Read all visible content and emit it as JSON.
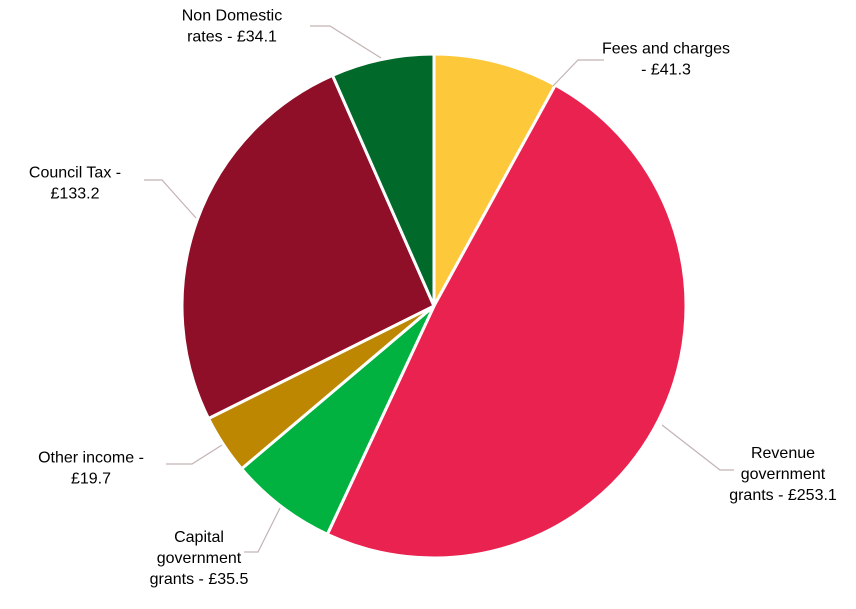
{
  "chart_data": {
    "type": "pie",
    "title": "",
    "categories": [
      "Fees and charges",
      "Revenue government grants",
      "Capital government grants",
      "Other income",
      "Council Tax",
      "Non Domestic rates"
    ],
    "values": [
      41.3,
      253.1,
      35.5,
      19.7,
      133.2,
      34.1
    ],
    "labels": [
      [
        "Fees and charges",
        "- £41.3"
      ],
      [
        "Revenue",
        "government",
        "grants - £253.1"
      ],
      [
        "Capital",
        "government",
        "grants - £35.5"
      ],
      [
        "Other income -",
        "£19.7"
      ],
      [
        "Council Tax -",
        "£133.2"
      ],
      [
        "Non Domestic",
        "rates - £34.1"
      ]
    ],
    "colors": [
      "#fdc93a",
      "#ea224f",
      "#02b241",
      "#bd8701",
      "#8f0e28",
      "#016a2b"
    ],
    "legend": "none",
    "start_angle": "12 o'clock, clockwise"
  }
}
